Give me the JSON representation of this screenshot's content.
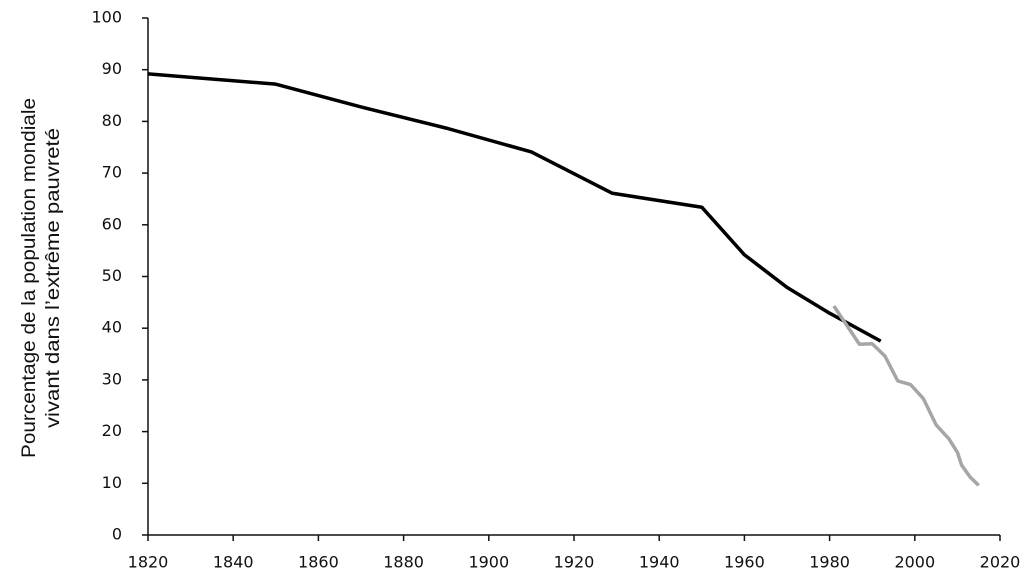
{
  "chart_data": {
    "type": "line",
    "ylabel": [
      "Pourcentage de la population mondiale",
      "vivant dans l’extrême pauvreté"
    ],
    "series": [
      {
        "color": "#000000",
        "x": [
          1820,
          1850,
          1870,
          1890,
          1910,
          1929,
          1950,
          1960,
          1970,
          1980,
          1992
        ],
        "values": [
          89.2,
          87.2,
          82.8,
          78.7,
          74.1,
          66.1,
          63.4,
          54.2,
          47.9,
          42.9,
          37.5
        ]
      },
      {
        "color": "#a6a6a6",
        "x": [
          1981,
          1984,
          1987,
          1990,
          1993,
          1996,
          1999,
          2002,
          2005,
          2008,
          2010,
          2011,
          2013,
          2015
        ],
        "values": [
          44.3,
          40.6,
          36.9,
          37.0,
          34.6,
          29.8,
          29.1,
          26.4,
          21.3,
          18.6,
          16.0,
          13.5,
          11.2,
          9.6
        ]
      }
    ],
    "xlim": [
      1820,
      2020
    ],
    "xticks": [
      1820,
      1840,
      1860,
      1880,
      1900,
      1920,
      1940,
      1960,
      1980,
      2000,
      2020
    ],
    "ylim": [
      0,
      100
    ],
    "yticks": [
      0,
      10,
      20,
      30,
      40,
      50,
      60,
      70,
      80,
      90,
      100
    ],
    "grid": false
  }
}
